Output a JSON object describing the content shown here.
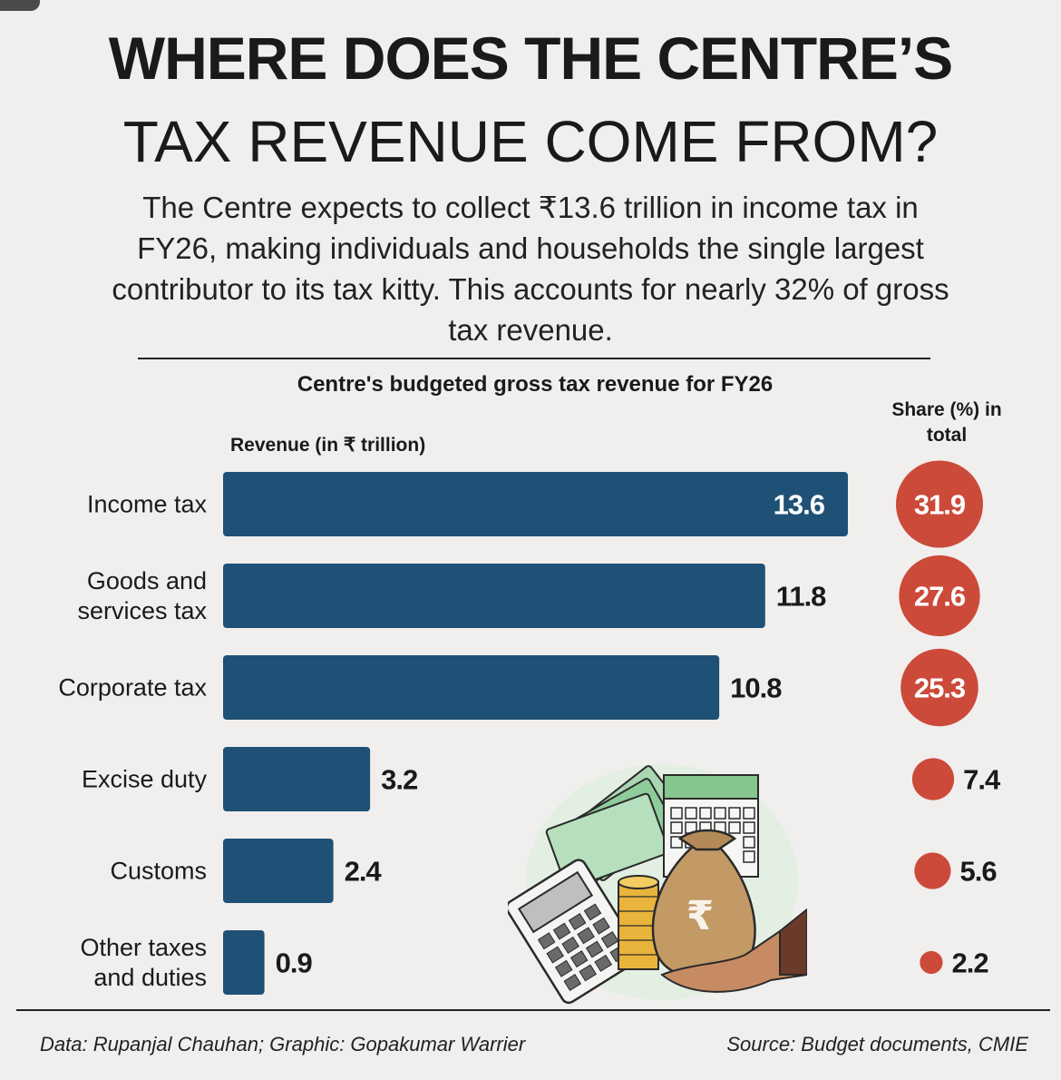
{
  "title_line1": "WHERE DOES THE CENTRE’S",
  "title_line2": "TAX REVENUE COME FROM?",
  "subtitle": "The Centre expects to collect ₹13.6 trillion in income tax in FY26, making individuals and households the single largest contributor to its tax kitty. This accounts for nearly 32% of gross tax revenue.",
  "chart_data": {
    "type": "bar",
    "orientation": "horizontal",
    "title": "Centre's budgeted gross tax revenue for FY26",
    "xlabel": "Revenue (in ₹ trillion)",
    "share_label": "Share (%) in total",
    "categories": [
      "Income tax",
      "Goods and services tax",
      "Corporate tax",
      "Excise duty",
      "Customs",
      "Other taxes and duties"
    ],
    "category_lines": [
      [
        "Income tax"
      ],
      [
        "Goods and",
        "services tax"
      ],
      [
        "Corporate tax"
      ],
      [
        "Excise duty"
      ],
      [
        "Customs"
      ],
      [
        "Other taxes",
        "and duties"
      ]
    ],
    "values": [
      13.6,
      11.8,
      10.8,
      3.2,
      2.4,
      0.9
    ],
    "share_percent": [
      31.9,
      27.6,
      25.3,
      7.4,
      5.6,
      2.2
    ],
    "xlim": [
      0,
      13.6
    ]
  },
  "colors": {
    "bar": "#1f5176",
    "share_circle": "#cc4a3a",
    "background": "#f0efed"
  },
  "footer": {
    "credit": "Data: Rupanjal Chauhan; Graphic: Gopakumar Warrier",
    "source": "Source: Budget documents, CMIE"
  }
}
